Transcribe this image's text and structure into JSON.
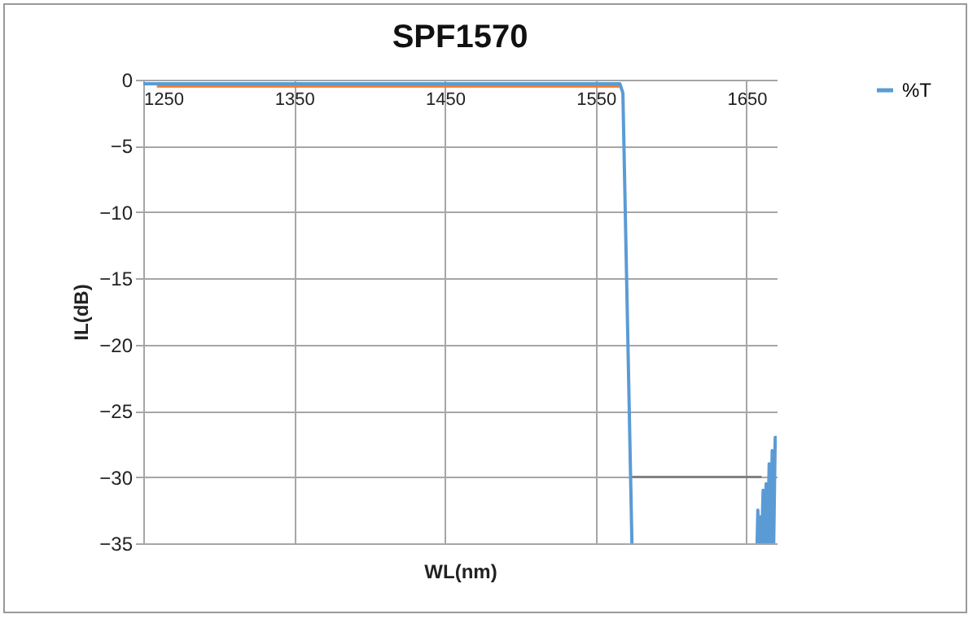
{
  "chart_data": {
    "type": "line",
    "title": "SPF1570",
    "xlabel": "WL(nm)",
    "ylabel": "IL(dB)",
    "xlim": [
      1250,
      1670
    ],
    "xticks": [
      1250,
      1350,
      1450,
      1550,
      1650
    ],
    "ylim": [
      -35,
      0
    ],
    "yticks": [
      0,
      -5,
      -10,
      -15,
      -20,
      -25,
      -30,
      -35
    ],
    "grid": true,
    "legend": "right",
    "marker": "none",
    "line_style": "solid",
    "series": [
      {
        "color": "#808080",
        "x": [
          1574,
          1660
        ],
        "values": [
          -30,
          -30
        ]
      },
      {
        "color": "#ed7d31",
        "x": [
          1259,
          1567
        ],
        "values": [
          -0.5,
          -0.5
        ]
      },
      {
        "name": "%T",
        "color": "#5b9bd5",
        "x": [
          1250,
          1400,
          1566,
          1568,
          1574,
          1575,
          1657,
          1657.5,
          1658,
          1659,
          1660,
          1661,
          1662,
          1663,
          1664,
          1665,
          1666,
          1667,
          1668,
          1669,
          1670
        ],
        "values": [
          -0.3,
          -0.3,
          -0.3,
          -1,
          -35,
          null,
          -35,
          -32.5,
          -35,
          -33,
          -35,
          -31,
          -35,
          -30.5,
          -35,
          -29,
          -35,
          -28,
          -35,
          -27,
          -27
        ]
      }
    ]
  }
}
